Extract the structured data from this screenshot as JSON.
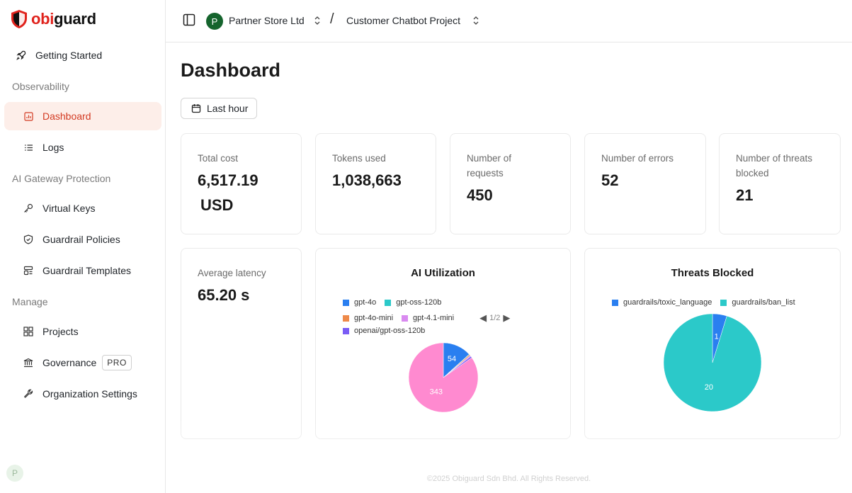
{
  "brand": {
    "name_accent": "obi",
    "name_rest": "guard",
    "accent_color": "#e0221c"
  },
  "sidebar": {
    "getting_started": "Getting Started",
    "observability_label": "Observability",
    "dashboard": "Dashboard",
    "logs": "Logs",
    "gateway_label": "AI Gateway Protection",
    "virtual_keys": "Virtual Keys",
    "guardrail_policies": "Guardrail Policies",
    "guardrail_templates": "Guardrail Templates",
    "manage_label": "Manage",
    "projects": "Projects",
    "governance": "Governance",
    "governance_badge": "PRO",
    "organization_settings": "Organization Settings",
    "user_initial": "P",
    "active_color": "#d33a22"
  },
  "topbar": {
    "org_initial": "P",
    "org_name": "Partner Store Ltd",
    "separator": "/",
    "project_name": "Customer Chatbot Project"
  },
  "main": {
    "title": "Dashboard",
    "time_range": "Last hour"
  },
  "stats": {
    "total_cost_label": "Total cost",
    "total_cost_value": "6,517.19",
    "total_cost_unit": "USD",
    "tokens_label": "Tokens used",
    "tokens_value": "1,038,663",
    "requests_label_1": "Number of",
    "requests_label_2": "requests",
    "requests_value": "450",
    "errors_label": "Number of errors",
    "errors_value": "52",
    "threats_label_1": "Number of threats",
    "threats_label_2": "blocked",
    "threats_value": "21",
    "latency_label": "Average latency",
    "latency_value": "65.20 s"
  },
  "chart_data": [
    {
      "type": "pie",
      "title": "AI Utilization",
      "legend_page": "1/2",
      "legend_placement": "top",
      "series": [
        {
          "name": "gpt-4o",
          "value": 54,
          "color": "#2a7ff0"
        },
        {
          "name": "gpt-oss-120b",
          "value": 1,
          "color": "#2bc9c9"
        },
        {
          "name": "gpt-4o-mini",
          "value": 2,
          "color": "#ee8a4a"
        },
        {
          "name": "gpt-4.1-mini",
          "value": 2,
          "color": "#d98af0"
        },
        {
          "name": "openai/gpt-oss-120b",
          "value": 3,
          "color": "#7a5cf5"
        },
        {
          "name": "",
          "value": 343,
          "color": "#ff8ad0"
        }
      ],
      "data_labels": [
        "54",
        "343"
      ]
    },
    {
      "type": "pie",
      "title": "Threats Blocked",
      "legend_placement": "top",
      "series": [
        {
          "name": "guardrails/toxic_language",
          "value": 1,
          "color": "#2a7ff0"
        },
        {
          "name": "guardrails/ban_list",
          "value": 20,
          "color": "#2bc9c9"
        }
      ],
      "data_labels": [
        "1",
        "20"
      ]
    }
  ],
  "footer": {
    "text": "©2025 Obiguard Sdn Bhd. All Rights Reserved."
  }
}
